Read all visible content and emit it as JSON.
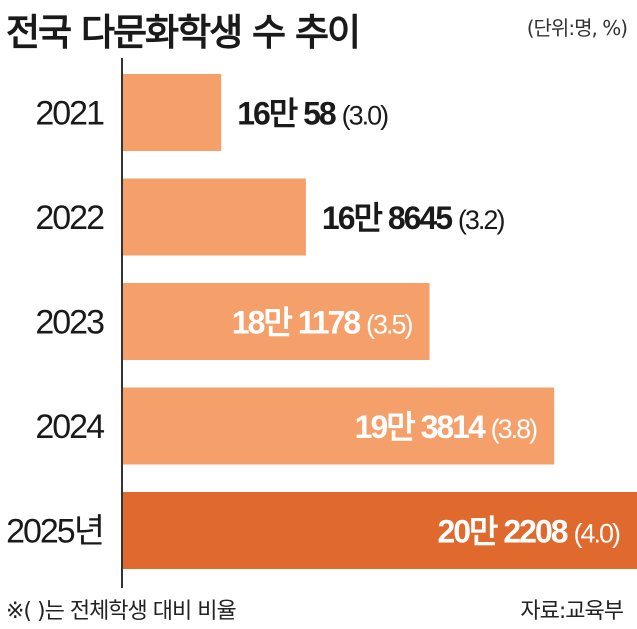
{
  "header": {
    "title": "전국 다문화학생 수 추이",
    "unit": "(단위:명, %)"
  },
  "footer": {
    "note": "※(    )는 전체학생 대비 비율",
    "source": "자료:교육부"
  },
  "colors": {
    "bar": "#f5a06a",
    "bar_highlight": "#e0692e",
    "axis": "#333333",
    "label_dark": "#1a1a1a",
    "label_light": "#ffffff"
  },
  "chart_data": {
    "type": "bar",
    "orientation": "horizontal",
    "categories": [
      "2021",
      "2022",
      "2023",
      "2024",
      "2025년"
    ],
    "values": [
      160058,
      168645,
      181178,
      193814,
      202208
    ],
    "ratios": [
      3.0,
      3.2,
      3.5,
      3.8,
      4.0
    ],
    "value_labels": [
      "16만 58",
      "16만 8645",
      "18만 1178",
      "19만 3814",
      "20만 2208"
    ],
    "ratio_labels": [
      "(3.0)",
      "(3.2)",
      "(3.5)",
      "(3.8)",
      "(4.0)"
    ],
    "highlight_index": 4,
    "label_inside": [
      false,
      false,
      true,
      true,
      true
    ],
    "axis_min": 150000,
    "axis_max": 202208,
    "title": "전국 다문화학생 수 추이",
    "xlabel": "",
    "ylabel": ""
  }
}
